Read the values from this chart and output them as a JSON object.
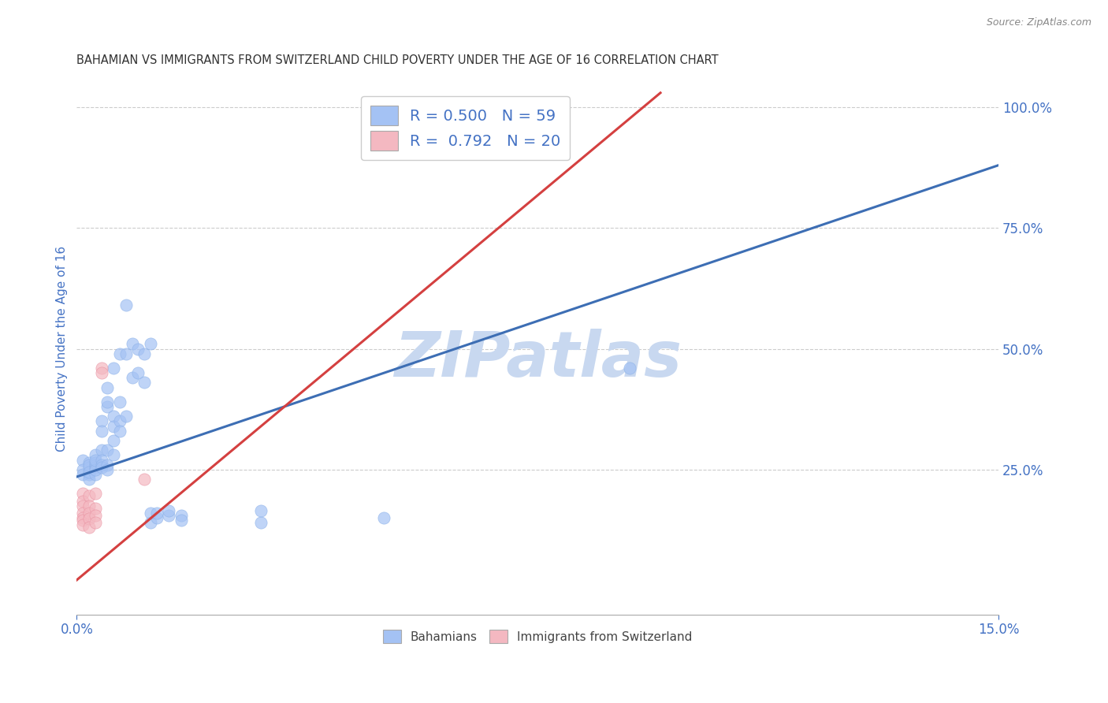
{
  "title": "BAHAMIAN VS IMMIGRANTS FROM SWITZERLAND CHILD POVERTY UNDER THE AGE OF 16 CORRELATION CHART",
  "source": "Source: ZipAtlas.com",
  "ylabel": "Child Poverty Under the Age of 16",
  "xlim": [
    0.0,
    0.15
  ],
  "ylim": [
    -0.05,
    1.05
  ],
  "xticks": [
    0.0,
    0.15
  ],
  "xticklabels": [
    "0.0%",
    "15.0%"
  ],
  "yticks_right": [
    0.25,
    0.5,
    0.75,
    1.0
  ],
  "yticklabels_right": [
    "25.0%",
    "50.0%",
    "75.0%",
    "100.0%"
  ],
  "legend_r1": "R = 0.500",
  "legend_n1": "N = 59",
  "legend_r2": "R = 0.792",
  "legend_n2": "N = 20",
  "blue_color": "#a4c2f4",
  "pink_color": "#f4b8c1",
  "blue_line_color": "#3d6eb4",
  "pink_line_color": "#d44040",
  "watermark": "ZIPatlas",
  "watermark_color": "#c8d8f0",
  "background_color": "#ffffff",
  "grid_color": "#cccccc",
  "title_color": "#333333",
  "axis_label_color": "#4472c4",
  "blue_scatter": [
    [
      0.001,
      0.27
    ],
    [
      0.001,
      0.25
    ],
    [
      0.001,
      0.24
    ],
    [
      0.002,
      0.265
    ],
    [
      0.002,
      0.255
    ],
    [
      0.002,
      0.24
    ],
    [
      0.002,
      0.23
    ],
    [
      0.002,
      0.26
    ],
    [
      0.002,
      0.245
    ],
    [
      0.003,
      0.28
    ],
    [
      0.003,
      0.255
    ],
    [
      0.003,
      0.26
    ],
    [
      0.003,
      0.265
    ],
    [
      0.003,
      0.24
    ],
    [
      0.003,
      0.25
    ],
    [
      0.003,
      0.27
    ],
    [
      0.004,
      0.29
    ],
    [
      0.004,
      0.27
    ],
    [
      0.004,
      0.26
    ],
    [
      0.004,
      0.255
    ],
    [
      0.004,
      0.35
    ],
    [
      0.004,
      0.33
    ],
    [
      0.005,
      0.38
    ],
    [
      0.005,
      0.29
    ],
    [
      0.005,
      0.26
    ],
    [
      0.005,
      0.25
    ],
    [
      0.005,
      0.42
    ],
    [
      0.005,
      0.39
    ],
    [
      0.006,
      0.46
    ],
    [
      0.006,
      0.36
    ],
    [
      0.006,
      0.34
    ],
    [
      0.006,
      0.31
    ],
    [
      0.006,
      0.28
    ],
    [
      0.007,
      0.49
    ],
    [
      0.007,
      0.39
    ],
    [
      0.007,
      0.35
    ],
    [
      0.007,
      0.33
    ],
    [
      0.008,
      0.59
    ],
    [
      0.008,
      0.49
    ],
    [
      0.008,
      0.36
    ],
    [
      0.009,
      0.51
    ],
    [
      0.009,
      0.44
    ],
    [
      0.01,
      0.5
    ],
    [
      0.01,
      0.45
    ],
    [
      0.011,
      0.49
    ],
    [
      0.011,
      0.43
    ],
    [
      0.012,
      0.51
    ],
    [
      0.012,
      0.14
    ],
    [
      0.012,
      0.16
    ],
    [
      0.013,
      0.15
    ],
    [
      0.013,
      0.16
    ],
    [
      0.015,
      0.155
    ],
    [
      0.015,
      0.165
    ],
    [
      0.017,
      0.155
    ],
    [
      0.017,
      0.145
    ],
    [
      0.03,
      0.14
    ],
    [
      0.03,
      0.165
    ],
    [
      0.05,
      0.15
    ],
    [
      0.09,
      0.46
    ]
  ],
  "pink_scatter": [
    [
      0.001,
      0.2
    ],
    [
      0.001,
      0.185
    ],
    [
      0.001,
      0.175
    ],
    [
      0.001,
      0.16
    ],
    [
      0.001,
      0.15
    ],
    [
      0.001,
      0.145
    ],
    [
      0.001,
      0.135
    ],
    [
      0.002,
      0.195
    ],
    [
      0.002,
      0.175
    ],
    [
      0.002,
      0.16
    ],
    [
      0.002,
      0.148
    ],
    [
      0.002,
      0.13
    ],
    [
      0.003,
      0.2
    ],
    [
      0.003,
      0.17
    ],
    [
      0.003,
      0.155
    ],
    [
      0.003,
      0.14
    ],
    [
      0.004,
      0.46
    ],
    [
      0.004,
      0.45
    ],
    [
      0.011,
      0.23
    ],
    [
      0.065,
      1.0
    ]
  ],
  "blue_line": [
    [
      0.0,
      0.235
    ],
    [
      0.15,
      0.88
    ]
  ],
  "pink_line": [
    [
      -0.002,
      0.0
    ],
    [
      0.095,
      1.03
    ]
  ],
  "legend_label1": "Bahamians",
  "legend_label2": "Immigrants from Switzerland"
}
